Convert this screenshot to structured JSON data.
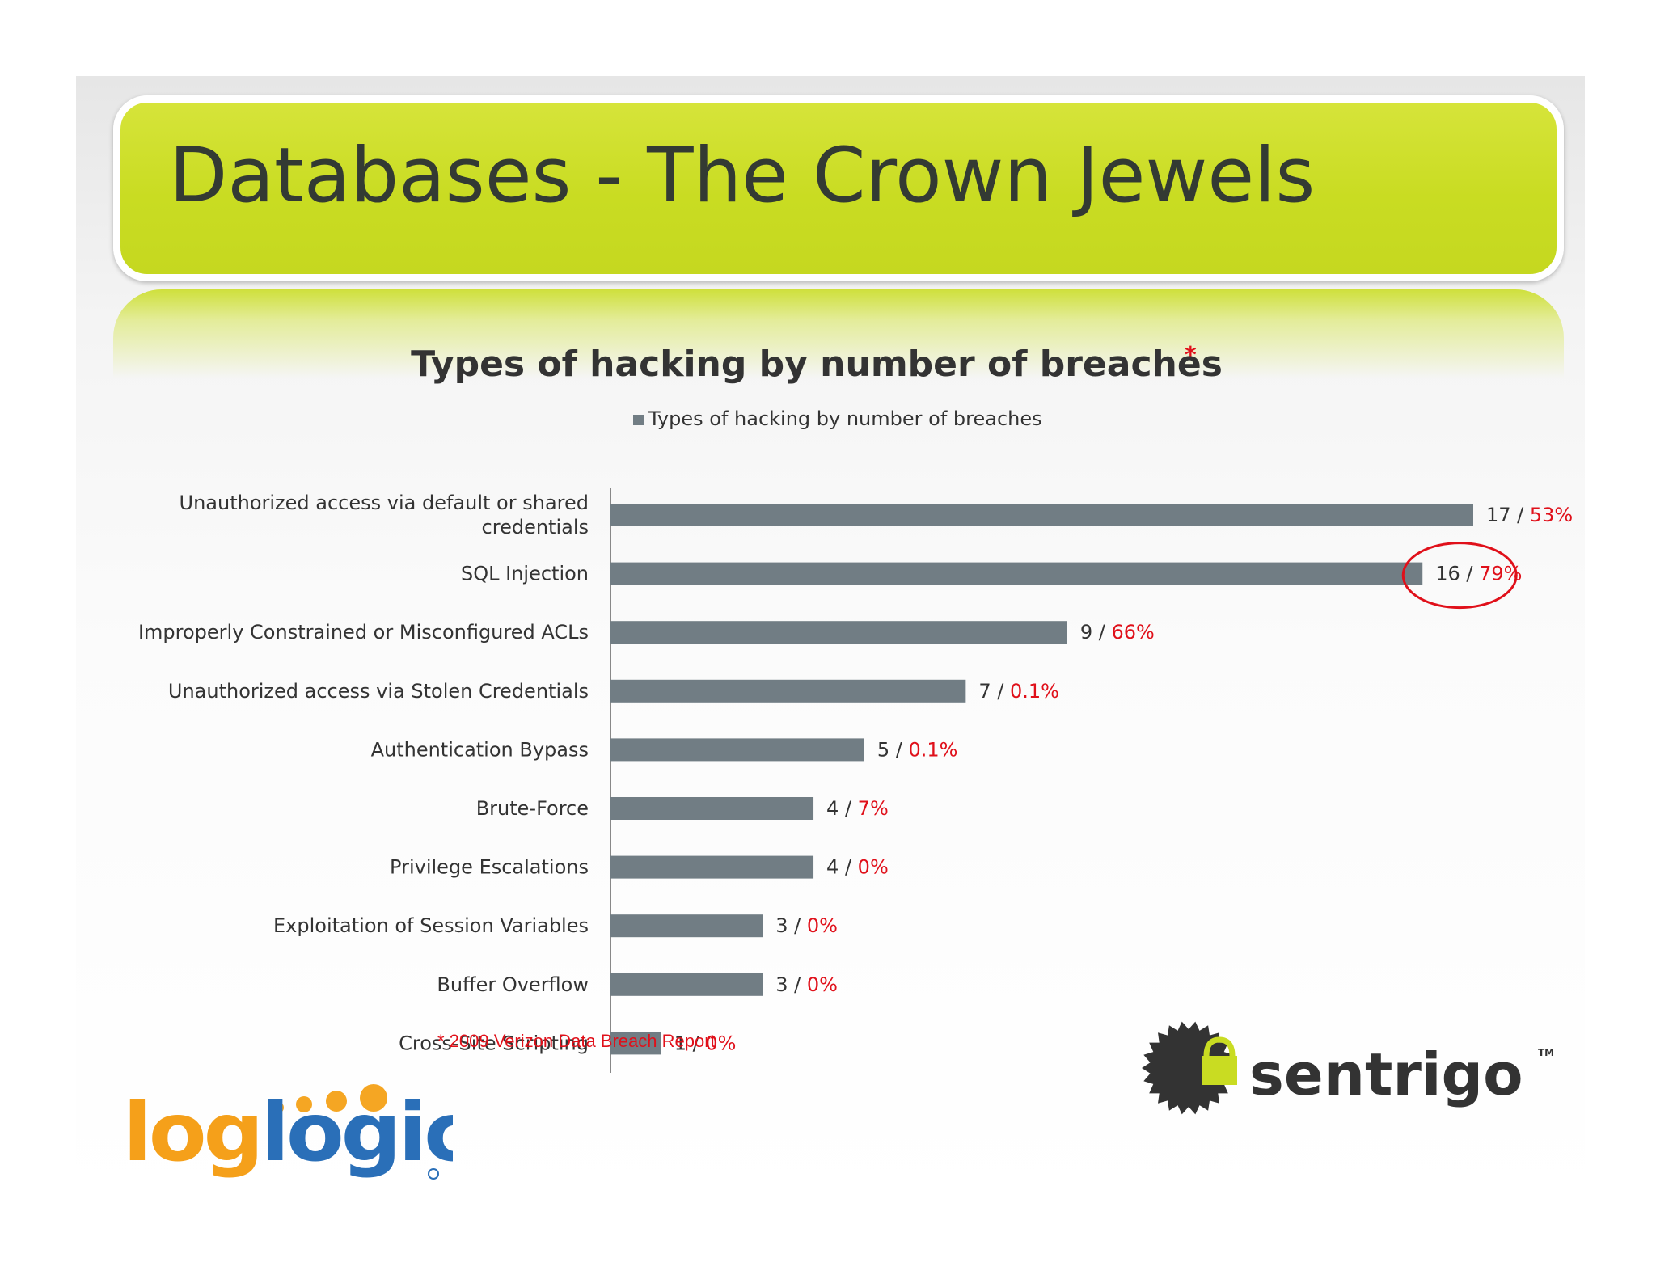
{
  "slide": {
    "title": "Databases - The Crown Jewels",
    "footnote": "* 2009 Verizon Data Breach Report"
  },
  "logos": {
    "left": "loglogic",
    "right": "sentrigo",
    "right_tm": "TM"
  },
  "colors": {
    "banner": "#c9dc22",
    "bar": "#717d84",
    "percent": "#e0101a",
    "highlight_circle": "#e0101a"
  },
  "chart_data": {
    "type": "bar",
    "orientation": "horizontal",
    "title": "Types of hacking by number of breaches",
    "title_marker": "*",
    "legend": [
      "Types of hacking by number of breaches"
    ],
    "legend_position": "top",
    "categories": [
      "Unauthorized access via default or shared credentials",
      "SQL Injection",
      "Improperly Constrained or Misconfigured ACLs",
      "Unauthorized access via Stolen Credentials",
      "Authentication Bypass",
      "Brute-Force",
      "Privilege Escalations",
      "Exploitation of Session Variables",
      "Buffer Overflow",
      "Cross-Site Scripting"
    ],
    "category_lines": [
      [
        "Unauthorized access via default or shared",
        "credentials"
      ],
      [
        "SQL Injection"
      ],
      [
        "Improperly Constrained or Misconfigured ACLs"
      ],
      [
        "Unauthorized access via Stolen Credentials"
      ],
      [
        "Authentication Bypass"
      ],
      [
        "Brute-Force"
      ],
      [
        "Privilege Escalations"
      ],
      [
        "Exploitation of Session Variables"
      ],
      [
        "Buffer Overflow"
      ],
      [
        "Cross-Site Scripting"
      ]
    ],
    "values": [
      17,
      16,
      9,
      7,
      5,
      4,
      4,
      3,
      3,
      1
    ],
    "percent_labels": [
      "53%",
      "79%",
      "66%",
      "0.1%",
      "0.1%",
      "7%",
      "0%",
      "0%",
      "0%",
      "0%"
    ],
    "separator": " / ",
    "highlighted_category_index": 1,
    "xlim": [
      0,
      17
    ],
    "grid": false
  }
}
